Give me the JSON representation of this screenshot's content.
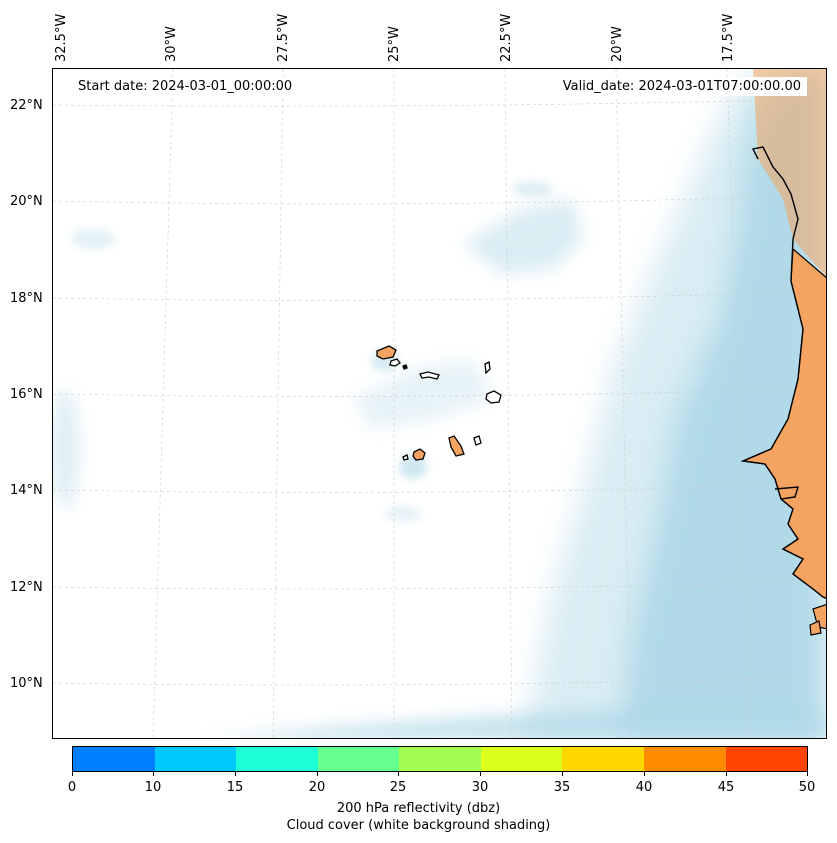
{
  "header": {
    "start_date": "Start date: 2024-03-01_00:00:00",
    "valid_date": "Valid_date: 2024-03-01T07:00:00.00"
  },
  "map": {
    "lon_labels": [
      "32.5°W",
      "30°W",
      "27.5°W",
      "25°W",
      "22.5°W",
      "20°W",
      "17.5°W"
    ],
    "lat_labels": [
      "22°N",
      "20°N",
      "18°N",
      "16°N",
      "14°N",
      "12°N",
      "10°N"
    ],
    "colors": {
      "land": "#f4a460",
      "cloud": "#add8e6",
      "coastline": "#000000",
      "gridline": "#cccccc"
    }
  },
  "colorbar": {
    "ticks": [
      "0",
      "10",
      "15",
      "20",
      "25",
      "30",
      "35",
      "40",
      "45",
      "50"
    ],
    "colors": [
      "#0080ff",
      "#00c8ff",
      "#1effd8",
      "#64ff8c",
      "#a0ff50",
      "#dcff1e",
      "#ffd700",
      "#ff8c00",
      "#ff4500"
    ],
    "label": "200 hPa reflectivity (dbz)",
    "sublabel": "Cloud cover (white background shading)"
  }
}
